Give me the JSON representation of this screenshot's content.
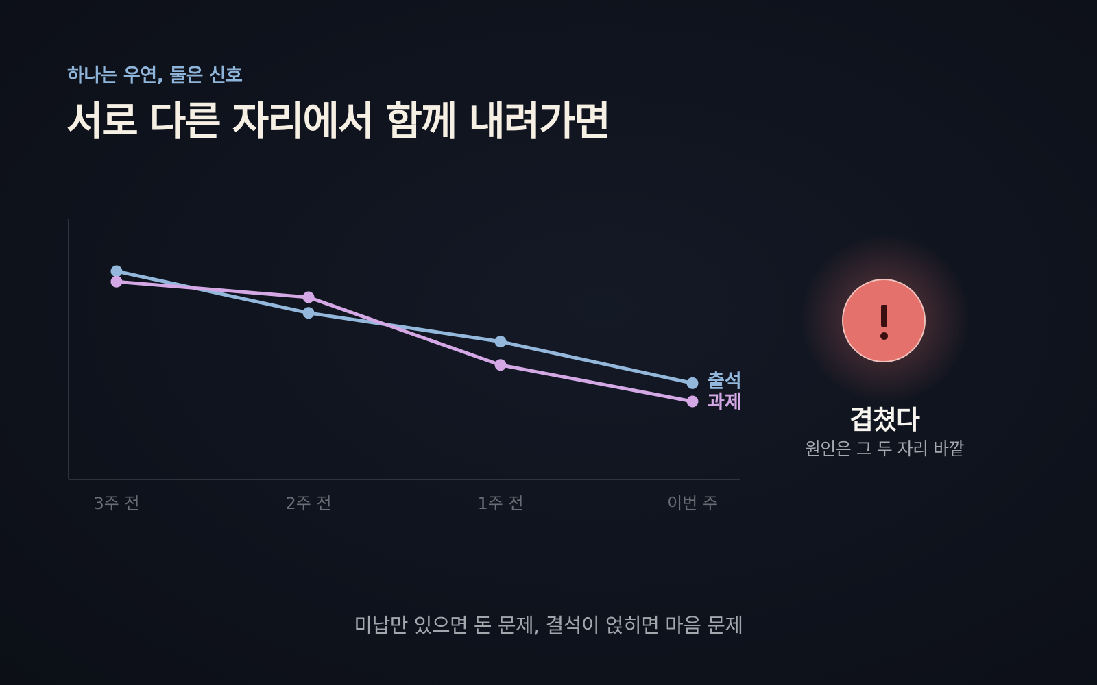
{
  "header": {
    "eyebrow": "하나는 우연, 둘은 신호",
    "title": "서로 다른 자리에서 함께 내려가면"
  },
  "alert": {
    "icon": "exclamation-icon",
    "title": "겹쳤다",
    "subtitle": "원인은 그 두 자리 바깥",
    "color": "#e4716b"
  },
  "footer": {
    "text": "미납만 있으면 돈 문제, 결석이 얹히면 마음 문제"
  },
  "chart_data": {
    "type": "line",
    "categories": [
      "3주 전",
      "2주 전",
      "1주 전",
      "이번 주"
    ],
    "ylim": [
      0,
      100
    ],
    "grid": false,
    "series": [
      {
        "name": "출석",
        "values": [
          80,
          64,
          53,
          37
        ],
        "color": "#93b8dc"
      },
      {
        "name": "과제",
        "values": [
          76,
          70,
          44,
          30
        ],
        "color": "#d4a8e4"
      }
    ]
  }
}
